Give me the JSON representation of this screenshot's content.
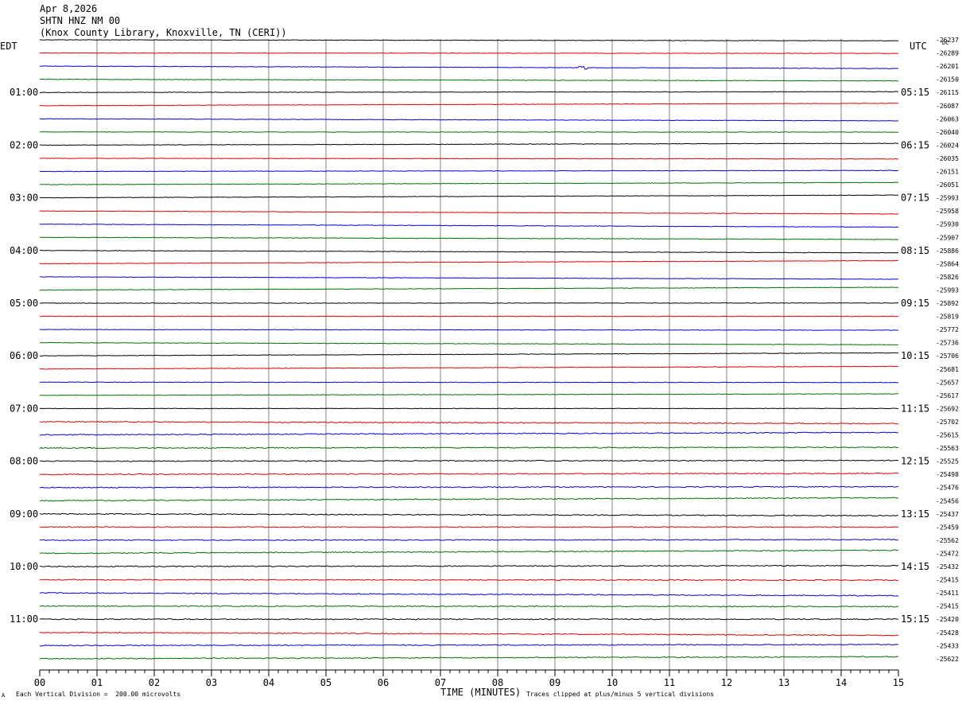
{
  "header": {
    "date": "Apr 8,2026",
    "station": "SHTN HNZ NM 00",
    "location": "(Knox County Library, Knoxville, TN (CERI))"
  },
  "labels": {
    "left_timezone": "EDT",
    "right_timezone": "UTC",
    "dc": "DC"
  },
  "footer": {
    "left_note": "Each Vertical Division =  200.00 microvolts",
    "right_note": "Traces clipped at plus/minus 5 vertical divisions",
    "corner_mark": "A"
  },
  "chart_data": {
    "type": "line",
    "title": "",
    "xlabel": "TIME (MINUTES)",
    "x_ticks": [
      "00",
      "01",
      "02",
      "03",
      "04",
      "05",
      "06",
      "07",
      "08",
      "09",
      "10",
      "11",
      "12",
      "13",
      "14",
      "15"
    ],
    "xlim": [
      0,
      15
    ],
    "grid": true,
    "colors": [
      "#000000",
      "#e00000",
      "#0000e0",
      "#007000"
    ],
    "left_time_labels": [
      "01:00",
      "02:00",
      "03:00",
      "04:00",
      "05:00",
      "06:00",
      "07:00",
      "08:00",
      "09:00",
      "10:00",
      "11:00"
    ],
    "right_time_labels": [
      "05:15",
      "06:15",
      "07:15",
      "08:15",
      "09:15",
      "10:15",
      "11:15",
      "12:15",
      "13:15",
      "14:15",
      "15:15"
    ],
    "dc_offsets": [
      "-26237",
      "-26289",
      "-26201",
      "-26150",
      "-26115",
      "-26087",
      "-26063",
      "-26040",
      "-26024",
      "-26035",
      "-26151",
      "-26051",
      "-25993",
      "-25958",
      "-25930",
      "-25907",
      "-25886",
      "-25864",
      "-25826",
      "-25993",
      "-25892",
      "-25819",
      "-25772",
      "-25736",
      "-25706",
      "-25681",
      "-25657",
      "-25617",
      "-25692",
      "-25702",
      "-25615",
      "-25563",
      "-25525",
      "-25498",
      "-25476",
      "-25456",
      "-25437",
      "-25459",
      "-25562",
      "-25472",
      "-25432",
      "-25415",
      "-25411",
      "-25415",
      "-25420",
      "-25428",
      "-25433",
      "-25622"
    ],
    "trace_count": 48,
    "events": [
      {
        "trace": 2,
        "minute": 9.5,
        "amplitude": 0.5
      }
    ]
  }
}
